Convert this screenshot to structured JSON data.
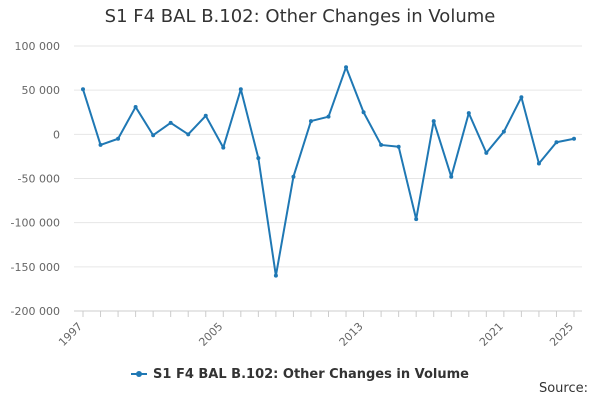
{
  "chart_data": {
    "type": "line",
    "title": "S1 F4 BAL B.102: Other Changes in Volume",
    "xlabel": "",
    "ylabel": "",
    "x": [
      1997,
      1998,
      1999,
      2000,
      2001,
      2002,
      2003,
      2004,
      2005,
      2006,
      2007,
      2008,
      2009,
      2010,
      2011,
      2012,
      2013,
      2014,
      2015,
      2016,
      2017,
      2018,
      2019,
      2020,
      2021,
      2022,
      2023,
      2024,
      2025
    ],
    "series": [
      {
        "name": "S1 F4 BAL B.102: Other Changes in Volume",
        "color": "#1f78b4",
        "values": [
          51000,
          -12000,
          -5000,
          31000,
          -1000,
          13000,
          0,
          21000,
          -15000,
          51000,
          -27000,
          -160000,
          -48000,
          15000,
          20000,
          76000,
          25000,
          -12000,
          -14000,
          -96000,
          15000,
          -48000,
          24000,
          -21000,
          3000,
          42000,
          -33000,
          -9000,
          -5000
        ]
      }
    ],
    "ylim": [
      -200000,
      100000
    ],
    "yticks": [
      100000,
      50000,
      0,
      -50000,
      -100000,
      -150000,
      -200000
    ],
    "ytick_labels": [
      "100 000",
      "50 000",
      "0",
      "-50 000",
      "-100 000",
      "-150 000",
      "-200 000"
    ],
    "xticks_labeled": [
      1997,
      2005,
      2013,
      2021,
      2025
    ],
    "xtick_labels": [
      "1997",
      "2005",
      "2013",
      "2021",
      "2025"
    ],
    "grid": true,
    "legend_position": "bottom-center"
  },
  "source_label": "Source:"
}
